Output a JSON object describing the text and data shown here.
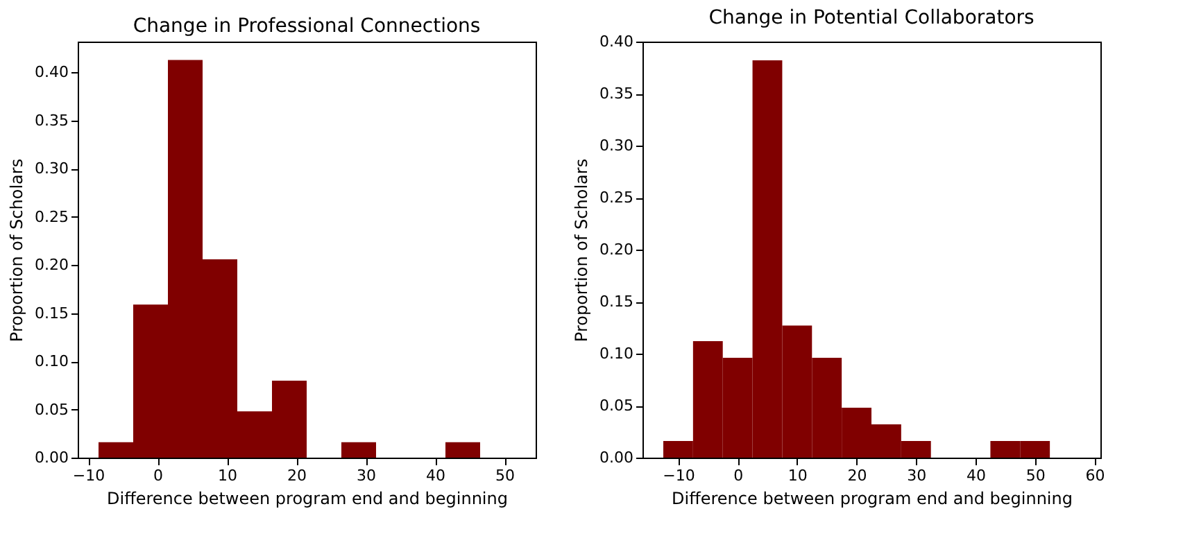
{
  "chart_data": [
    {
      "type": "histogram",
      "title": "Change in Professional Connections",
      "xlabel": "Difference between program end and beginning",
      "ylabel": "Proportion of Scholars",
      "color": "#800000",
      "bins": [
        -8.5,
        -3.5,
        1.5,
        6.5,
        11.5,
        16.5,
        21.5,
        26.5,
        31.5,
        36.5,
        41.5,
        46.5,
        51.5
      ],
      "values": [
        0.016,
        0.159,
        0.413,
        0.206,
        0.048,
        0.08,
        0,
        0.016,
        0,
        0,
        0.016,
        0
      ],
      "xlim": [
        -11.5,
        54.5
      ],
      "xticks": [
        -10,
        0,
        10,
        20,
        30,
        40,
        50
      ],
      "ylim": [
        0,
        0.432
      ],
      "yticks": [
        {
          "value": 0,
          "label": "0.00"
        },
        {
          "value": 0.05,
          "label": "0.05"
        },
        {
          "value": 0.1,
          "label": "0.10"
        },
        {
          "value": 0.15,
          "label": "0.15"
        },
        {
          "value": 0.2,
          "label": "0.20"
        },
        {
          "value": 0.25,
          "label": "0.25"
        },
        {
          "value": 0.3,
          "label": "0.30"
        },
        {
          "value": 0.35,
          "label": "0.35"
        },
        {
          "value": 0.4,
          "label": "0.40"
        }
      ],
      "grid": false
    },
    {
      "type": "histogram",
      "title": "Change in Potential Collaborators",
      "xlabel": "Difference between program end and beginning",
      "ylabel": "Proportion of Scholars",
      "color": "#800000",
      "bins": [
        -12.5,
        -7.5,
        -2.5,
        2.5,
        7.5,
        12.5,
        17.5,
        22.5,
        27.5,
        32.5,
        37.5,
        42.5,
        47.5,
        52.5,
        57.5
      ],
      "values": [
        0.016,
        0.112,
        0.096,
        0.382,
        0.127,
        0.096,
        0.048,
        0.032,
        0.016,
        0,
        0,
        0.016,
        0.016,
        0
      ],
      "xlim": [
        -16,
        61
      ],
      "xticks": [
        -10,
        0,
        10,
        20,
        30,
        40,
        50,
        60
      ],
      "ylim": [
        0,
        0.4
      ],
      "yticks": [
        {
          "value": 0,
          "label": "0.00"
        },
        {
          "value": 0.05,
          "label": "0.05"
        },
        {
          "value": 0.1,
          "label": "0.10"
        },
        {
          "value": 0.15,
          "label": "0.15"
        },
        {
          "value": 0.2,
          "label": "0.20"
        },
        {
          "value": 0.25,
          "label": "0.25"
        },
        {
          "value": 0.3,
          "label": "0.30"
        },
        {
          "value": 0.35,
          "label": "0.35"
        },
        {
          "value": 0.4,
          "label": "0.40"
        }
      ],
      "grid": false
    }
  ]
}
